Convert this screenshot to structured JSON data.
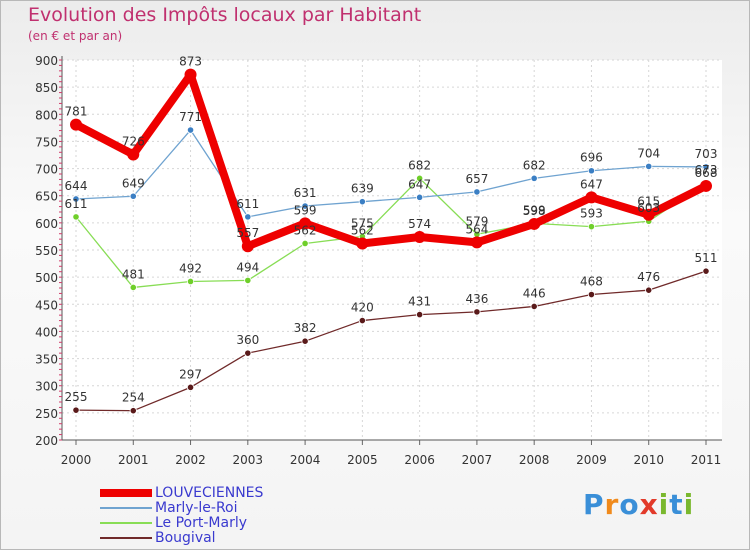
{
  "title": "Evolution des Impôts locaux par Habitant",
  "subtitle": "(en € et par an)",
  "brand": {
    "letters": [
      "P",
      "r",
      "o",
      "x",
      "i",
      "t",
      "i"
    ],
    "colors": [
      "#3a8fd8",
      "#f08a1c",
      "#3a8fd8",
      "#e23a2a",
      "#7ab82e",
      "#3a8fd8",
      "#7ab82e"
    ]
  },
  "chart_data": {
    "type": "line",
    "title": "Evolution des Impôts locaux par Habitant",
    "subtitle": "(en € et par an)",
    "categories": [
      "2000",
      "2001",
      "2002",
      "2003",
      "2004",
      "2005",
      "2006",
      "2007",
      "2008",
      "2009",
      "2010",
      "2011"
    ],
    "y_ticks": [
      "200",
      "250",
      "300",
      "350",
      "400",
      "450",
      "500",
      "550",
      "600",
      "650",
      "700",
      "750",
      "800",
      "850",
      "900"
    ],
    "ylim": [
      200,
      900
    ],
    "grid": true,
    "legend_position": "bottom-left",
    "series": [
      {
        "name": "LOUVECIENNES",
        "color": "#ee0000",
        "values": [
          781,
          726,
          873,
          557,
          599,
          562,
          574,
          564,
          598,
          647,
          615,
          668
        ],
        "labels": [
          "781",
          "726",
          "873",
          "557",
          "599",
          "562",
          "574",
          "564",
          "598",
          "647",
          "615",
          "668"
        ]
      },
      {
        "name": "Marly-le-Roi",
        "color": "#6fa3d0",
        "values": [
          644,
          649,
          771,
          611,
          631,
          639,
          647,
          657,
          682,
          696,
          704,
          703
        ],
        "labels": [
          "644",
          "649",
          "771",
          "611",
          "631",
          "639",
          "647",
          "657",
          "682",
          "696",
          "704",
          "703"
        ]
      },
      {
        "name": "Le Port-Marly",
        "color": "#88dd55",
        "values": [
          611,
          481,
          492,
          494,
          562,
          575,
          682,
          579,
          599,
          593,
          603,
          673
        ],
        "labels": [
          "611",
          "481",
          "492",
          "494",
          "562",
          "575",
          "682",
          "579",
          "599",
          "593",
          "603",
          "673"
        ]
      },
      {
        "name": "Bougival",
        "color": "#702a2a",
        "values": [
          255,
          254,
          297,
          360,
          382,
          420,
          431,
          436,
          446,
          468,
          476,
          511
        ],
        "labels": [
          "255",
          "254",
          "297",
          "360",
          "382",
          "420",
          "431",
          "436",
          "446",
          "468",
          "476",
          "511"
        ]
      }
    ]
  }
}
